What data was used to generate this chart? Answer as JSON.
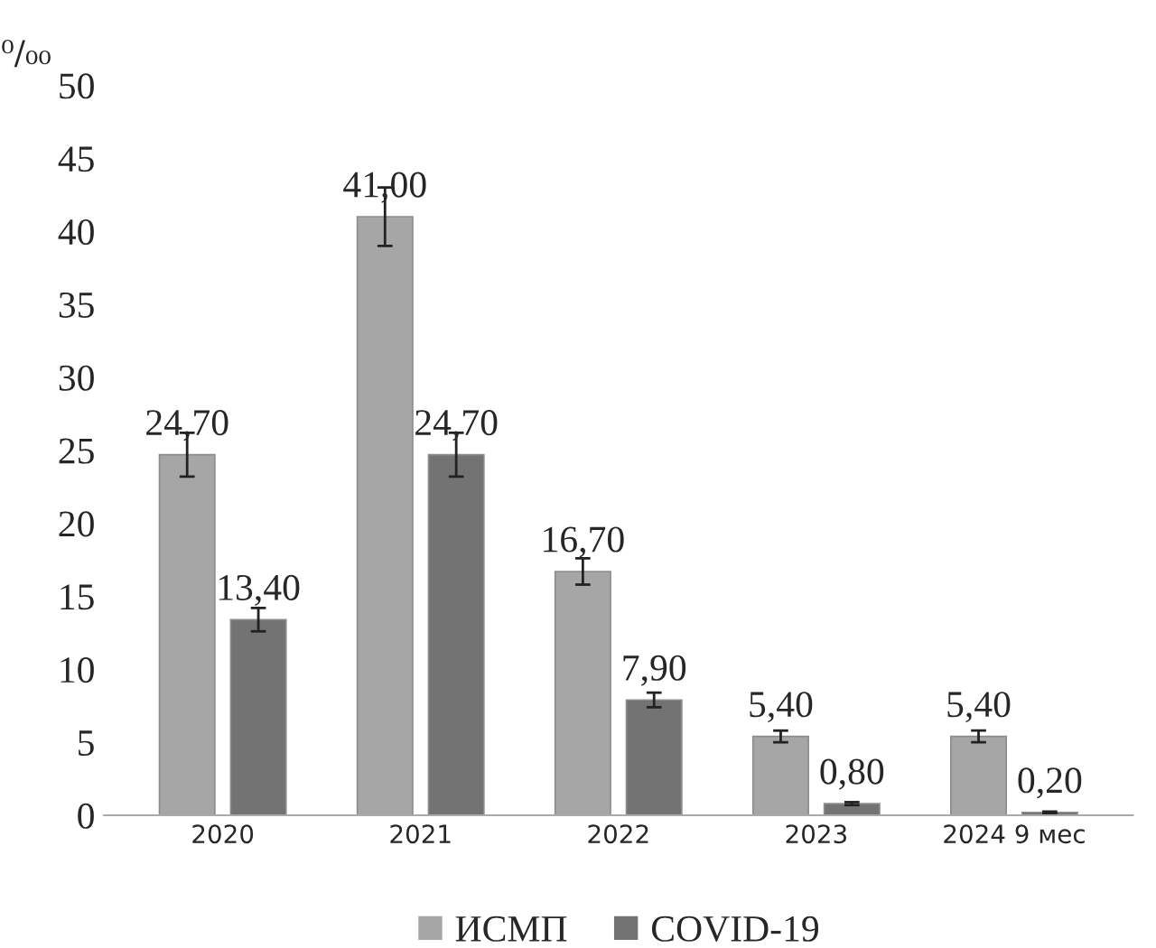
{
  "chart_data": {
    "type": "bar",
    "ylabel": "⁰/₀₀",
    "categories": [
      "2020",
      "2021",
      "2022",
      "2023",
      "2024 9 мес"
    ],
    "series": [
      {
        "name": "ИСМП",
        "color": "#a6a6a6",
        "values": [
          24.7,
          41.0,
          16.7,
          5.4,
          5.4
        ],
        "errors": [
          1.5,
          2.0,
          0.9,
          0.4,
          0.4
        ],
        "value_labels": [
          "24,70",
          "41,00",
          "16,70",
          "5,40",
          "5,40"
        ]
      },
      {
        "name": "COVID-19",
        "color": "#737373",
        "values": [
          13.4,
          24.7,
          7.9,
          0.8,
          0.2
        ],
        "errors": [
          0.8,
          1.5,
          0.5,
          0.1,
          0.05
        ],
        "value_labels": [
          "13,40",
          "24,70",
          "7,90",
          "0,80",
          "0,20"
        ]
      }
    ],
    "ylim": [
      0,
      50
    ],
    "yticks": [
      0,
      5,
      10,
      15,
      20,
      25,
      30,
      35,
      40,
      45,
      50
    ],
    "grid": false,
    "legend": "bottom"
  }
}
